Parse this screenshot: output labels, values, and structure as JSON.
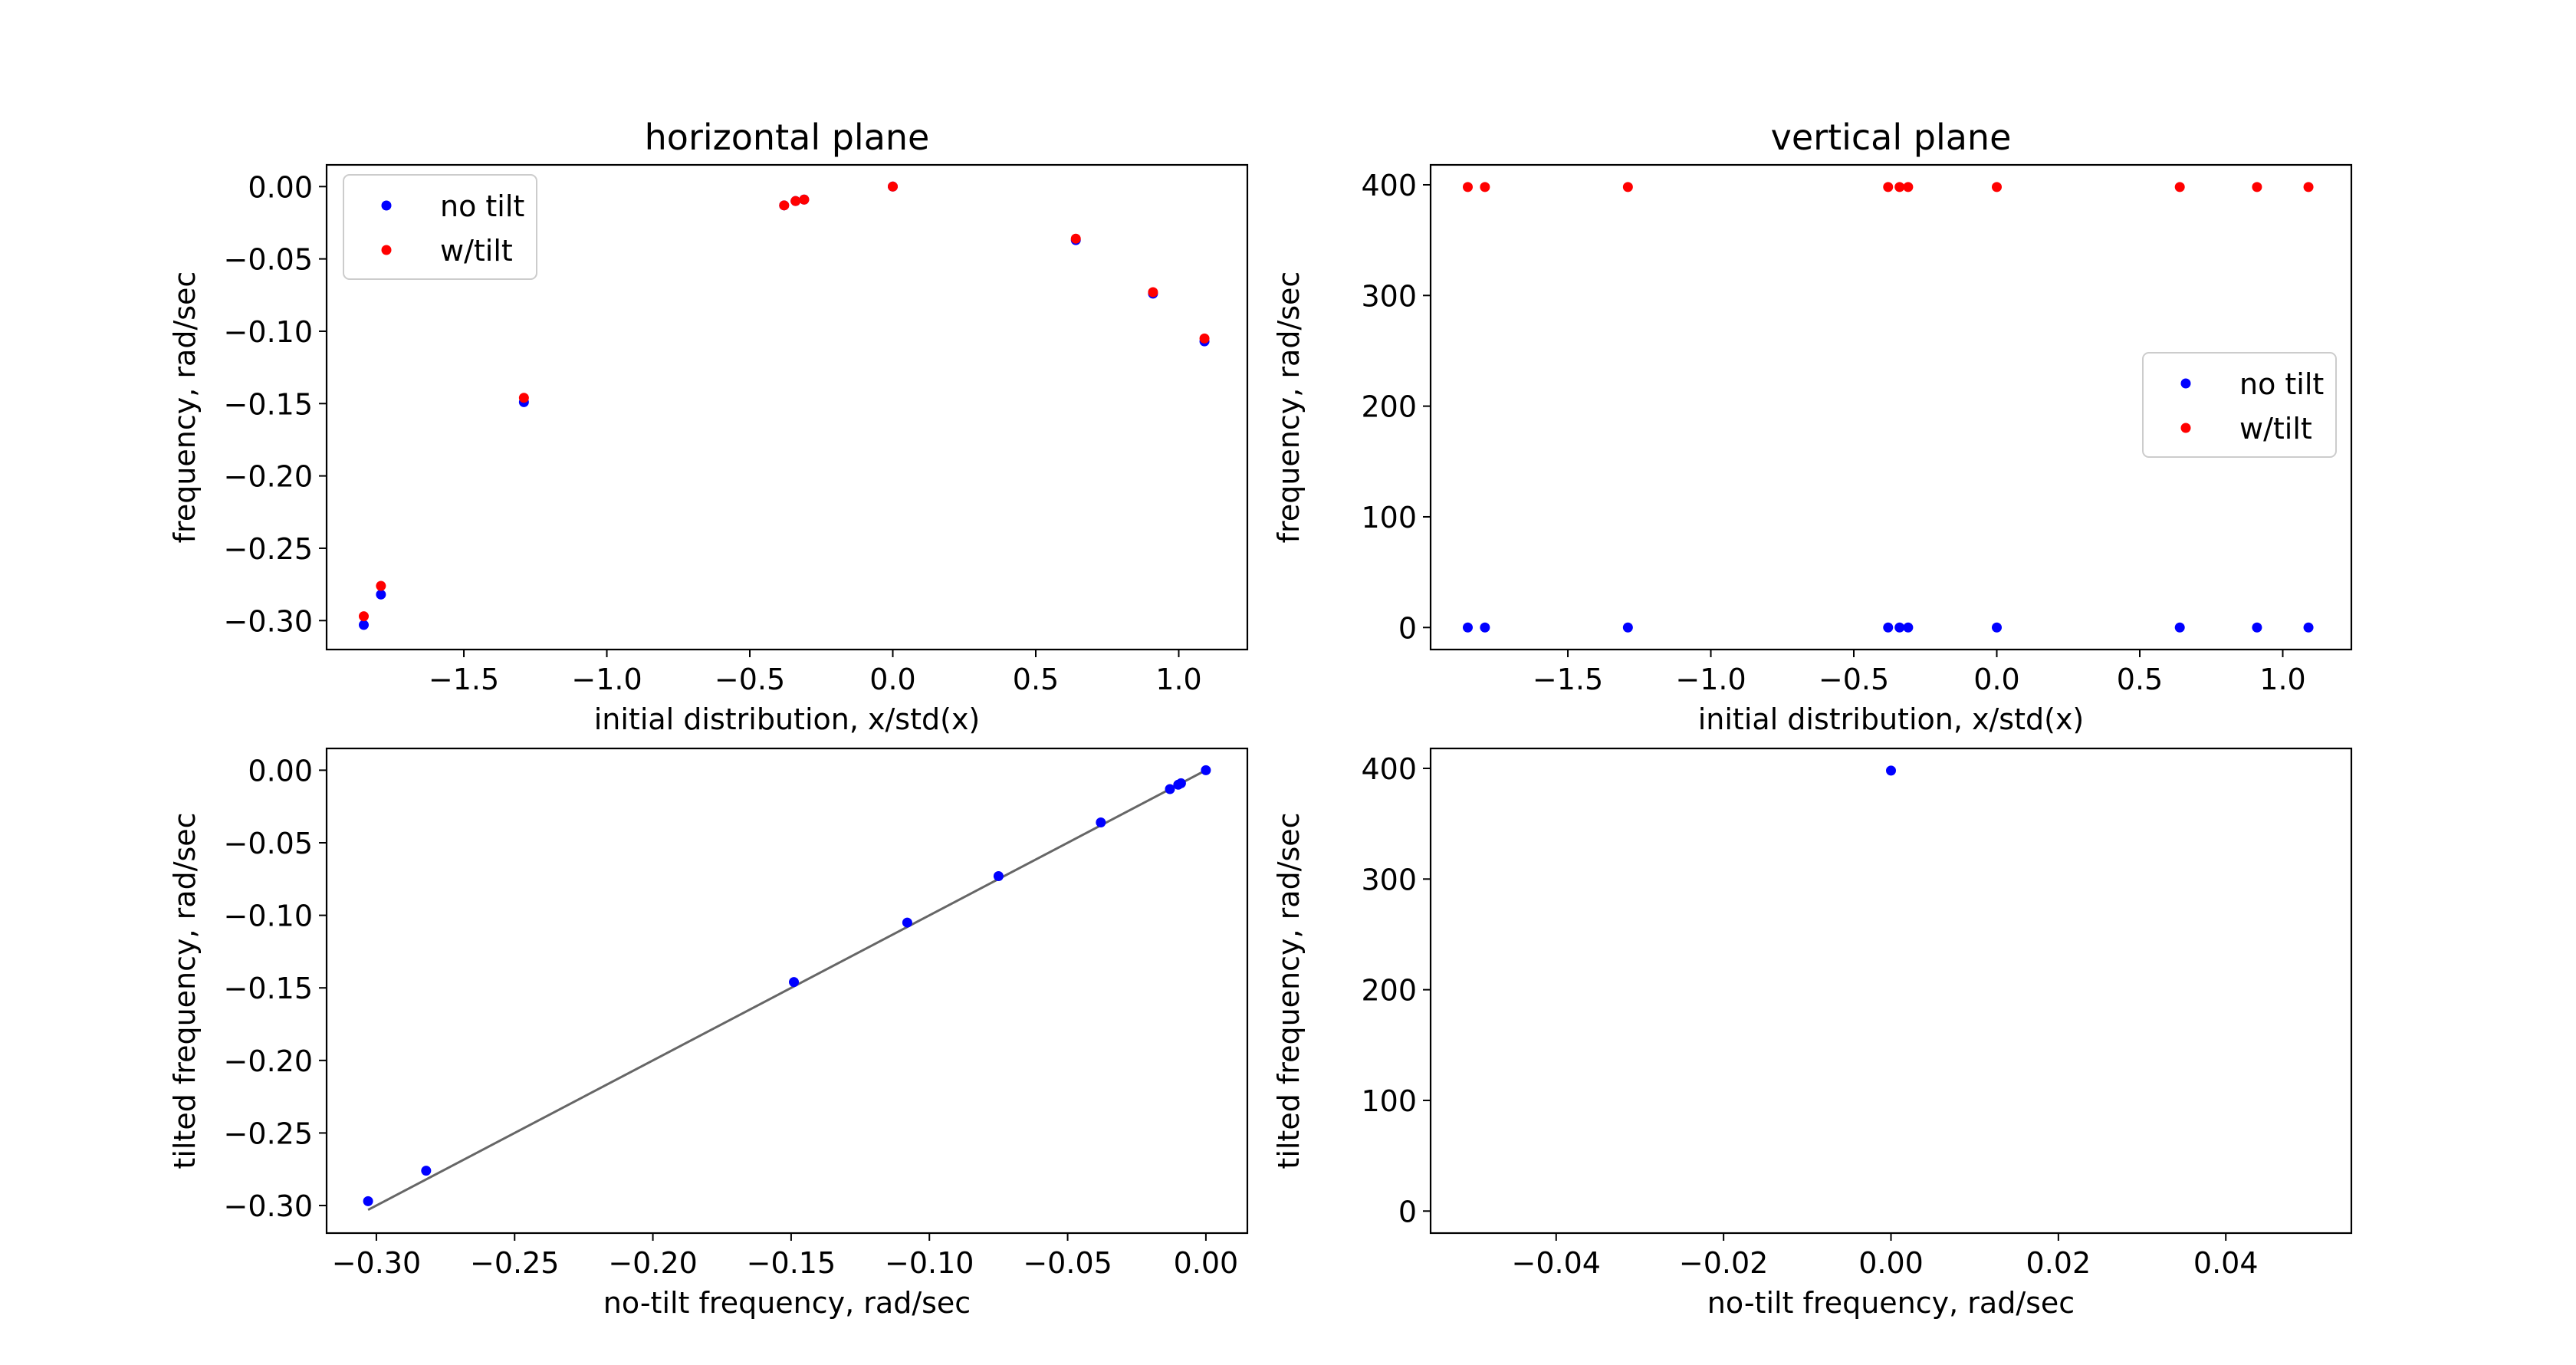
{
  "chart_data": [
    {
      "id": "top-left",
      "type": "scatter",
      "title": "horizontal plane",
      "xlabel": "initial distribution, x/std(x)",
      "ylabel": "frequency, rad/sec",
      "xlim": [
        -1.98,
        1.24
      ],
      "ylim": [
        -0.32,
        0.015
      ],
      "xticks": [
        -1.5,
        -1.0,
        -0.5,
        0.0,
        0.5,
        1.0
      ],
      "xtick_labels": [
        "−1.5",
        "−1.0",
        "−0.5",
        "0.0",
        "0.5",
        "1.0"
      ],
      "yticks": [
        0.0,
        -0.05,
        -0.1,
        -0.15,
        -0.2,
        -0.25,
        -0.3
      ],
      "ytick_labels": [
        "0.00",
        "−0.05",
        "−0.10",
        "−0.15",
        "−0.20",
        "−0.25",
        "−0.30"
      ],
      "legend": "upper-left",
      "series": [
        {
          "name": "no tilt",
          "color": "#0000ff",
          "x": [
            -1.85,
            -1.79,
            -1.29,
            -0.38,
            -0.34,
            -0.31,
            0.0,
            0.64,
            0.91,
            1.09
          ],
          "y": [
            -0.303,
            -0.282,
            -0.149,
            -0.013,
            -0.01,
            -0.009,
            0.0,
            -0.037,
            -0.074,
            -0.107
          ]
        },
        {
          "name": "w/tilt",
          "color": "#ff0000",
          "x": [
            -1.85,
            -1.79,
            -1.29,
            -0.38,
            -0.34,
            -0.31,
            0.0,
            0.64,
            0.91,
            1.09
          ],
          "y": [
            -0.297,
            -0.276,
            -0.146,
            -0.013,
            -0.01,
            -0.009,
            0.0,
            -0.036,
            -0.073,
            -0.105
          ]
        }
      ]
    },
    {
      "id": "top-right",
      "type": "scatter",
      "title": "vertical plane",
      "xlabel": "initial distribution, x/std(x)",
      "ylabel": "frequency, rad/sec",
      "xlim": [
        -1.98,
        1.24
      ],
      "ylim": [
        -19.9,
        418.0
      ],
      "xticks": [
        -1.5,
        -1.0,
        -0.5,
        0.0,
        0.5,
        1.0
      ],
      "xtick_labels": [
        "−1.5",
        "−1.0",
        "−0.5",
        "0.0",
        "0.5",
        "1.0"
      ],
      "yticks": [
        0,
        100,
        200,
        300,
        400
      ],
      "ytick_labels": [
        "0",
        "100",
        "200",
        "300",
        "400"
      ],
      "legend": "center-right",
      "series": [
        {
          "name": "no tilt",
          "color": "#0000ff",
          "x": [
            -1.85,
            -1.79,
            -1.29,
            -0.38,
            -0.34,
            -0.31,
            0.0,
            0.64,
            0.91,
            1.09
          ],
          "y": [
            0,
            0,
            0,
            0,
            0,
            0,
            0,
            0,
            0,
            0
          ]
        },
        {
          "name": "w/tilt",
          "color": "#ff0000",
          "x": [
            -1.85,
            -1.79,
            -1.29,
            -0.38,
            -0.34,
            -0.31,
            0.0,
            0.64,
            0.91,
            1.09
          ],
          "y": [
            398,
            398,
            398,
            398,
            398,
            398,
            398,
            398,
            398,
            398
          ]
        }
      ]
    },
    {
      "id": "bottom-left",
      "type": "scatter",
      "title": "",
      "xlabel": "no-tilt frequency, rad/sec",
      "ylabel": "tilted frequency, rad/sec",
      "xlim": [
        -0.318,
        0.015
      ],
      "ylim": [
        -0.319,
        0.015
      ],
      "xticks": [
        -0.3,
        -0.25,
        -0.2,
        -0.15,
        -0.1,
        -0.05,
        0.0
      ],
      "xtick_labels": [
        "−0.30",
        "−0.25",
        "−0.20",
        "−0.15",
        "−0.10",
        "−0.05",
        "0.00"
      ],
      "yticks": [
        0.0,
        -0.05,
        -0.1,
        -0.15,
        -0.2,
        -0.25,
        -0.3
      ],
      "ytick_labels": [
        "0.00",
        "−0.05",
        "−0.10",
        "−0.15",
        "−0.20",
        "−0.25",
        "−0.30"
      ],
      "fit_line": {
        "color": "#666666",
        "x": [
          -0.303,
          0.0
        ],
        "y": [
          -0.303,
          0.0
        ]
      },
      "series": [
        {
          "color": "#0000ff",
          "x": [
            -0.303,
            -0.282,
            -0.149,
            -0.108,
            -0.075,
            -0.038,
            -0.013,
            -0.01,
            -0.009,
            0.0
          ],
          "y": [
            -0.297,
            -0.276,
            -0.146,
            -0.105,
            -0.073,
            -0.036,
            -0.013,
            -0.01,
            -0.009,
            0.0
          ]
        }
      ]
    },
    {
      "id": "bottom-right",
      "type": "scatter",
      "title": "",
      "xlabel": "no-tilt frequency, rad/sec",
      "ylabel": "tilted frequency, rad/sec",
      "xlim": [
        -0.055,
        0.055
      ],
      "ylim": [
        -19.9,
        418.0
      ],
      "xticks": [
        -0.04,
        -0.02,
        0.0,
        0.02,
        0.04
      ],
      "xtick_labels": [
        "−0.04",
        "−0.02",
        "0.00",
        "0.02",
        "0.04"
      ],
      "yticks": [
        0,
        100,
        200,
        300,
        400
      ],
      "ytick_labels": [
        "0",
        "100",
        "200",
        "300",
        "400"
      ],
      "series": [
        {
          "color": "#0000ff",
          "x": [
            0.0
          ],
          "y": [
            398
          ]
        }
      ]
    }
  ]
}
